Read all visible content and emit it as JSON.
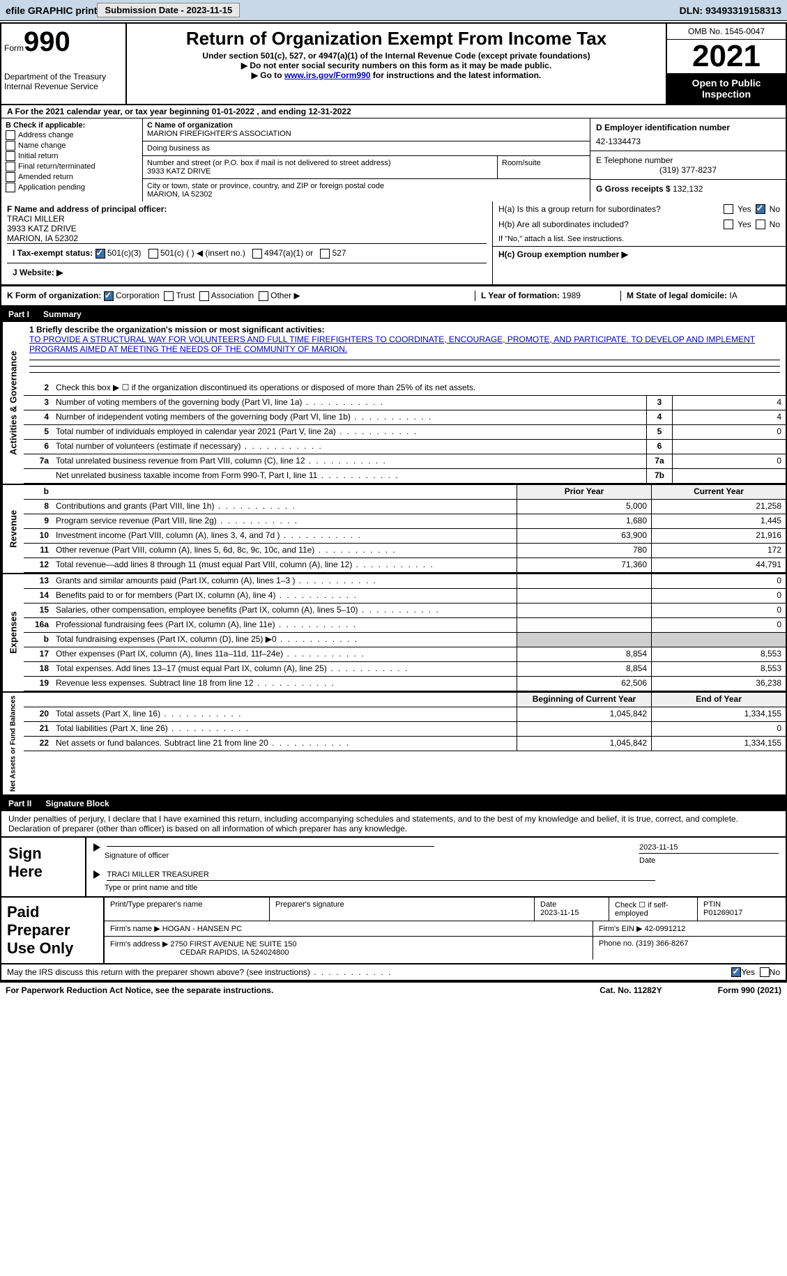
{
  "topbar": {
    "efile": "efile GRAPHIC print",
    "sub_date_label": "Submission Date - 2023-11-15",
    "dln_label": "DLN: 93493319158313"
  },
  "header": {
    "form_word": "Form",
    "form_num": "990",
    "dept": "Department of the Treasury",
    "irs": "Internal Revenue Service",
    "title": "Return of Organization Exempt From Income Tax",
    "sub1": "Under section 501(c), 527, or 4947(a)(1) of the Internal Revenue Code (except private foundations)",
    "sub2": "▶ Do not enter social security numbers on this form as it may be made public.",
    "sub3_pre": "▶ Go to ",
    "sub3_link": "www.irs.gov/Form990",
    "sub3_post": " for instructions and the latest information.",
    "omb": "OMB No. 1545-0047",
    "year": "2021",
    "open": "Open to Public Inspection"
  },
  "row_a": "A For the 2021 calendar year, or tax year beginning 01-01-2022    , and ending 12-31-2022",
  "col_b": {
    "label": "B Check if applicable:",
    "opts": [
      "Address change",
      "Name change",
      "Initial return",
      "Final return/terminated",
      "Amended return",
      "Application pending"
    ]
  },
  "col_c": {
    "name_label": "C Name of organization",
    "name": "MARION FIREFIGHTER'S ASSOCIATION",
    "dba_label": "Doing business as",
    "dba": "",
    "addr_label": "Number and street (or P.O. box if mail is not delivered to street address)",
    "addr": "3933 KATZ DRIVE",
    "room_label": "Room/suite",
    "city_label": "City or town, state or province, country, and ZIP or foreign postal code",
    "city": "MARION, IA   52302"
  },
  "col_d": {
    "ein_label": "D Employer identification number",
    "ein": "42-1334473",
    "tel_label": "E Telephone number",
    "tel": "(319) 377-8237",
    "gross_label": "G Gross receipts $",
    "gross": "132,132"
  },
  "section_f": {
    "label": "F Name and address of principal officer:",
    "name": "TRACI MILLER",
    "addr": "3933 KATZ DRIVE",
    "city": "MARION, IA   52302"
  },
  "section_h": {
    "ha": "H(a)  Is this a group return for subordinates?",
    "hb": "H(b)  Are all subordinates included?",
    "hb_note": "If \"No,\" attach a list. See instructions.",
    "hc": "H(c)  Group exemption number ▶",
    "yes": "Yes",
    "no": "No"
  },
  "tax_status": {
    "label": "I   Tax-exempt status:",
    "o1": "501(c)(3)",
    "o2": "501(c) (   ) ◀ (insert no.)",
    "o3": "4947(a)(1) or",
    "o4": "527"
  },
  "website": {
    "label": "J   Website: ▶"
  },
  "row_k": {
    "label": "K Form of organization:",
    "corp": "Corporation",
    "trust": "Trust",
    "assoc": "Association",
    "other": "Other ▶",
    "l_label": "L Year of formation: ",
    "l_val": "1989",
    "m_label": "M State of legal domicile: ",
    "m_val": "IA"
  },
  "part1": {
    "num": "Part I",
    "title": "Summary"
  },
  "summary": {
    "q1_label": "1  Briefly describe the organization's mission or most significant activities:",
    "q1_text": "TO PROVIDE A STRUCTURAL WAY FOR VOLUNTEERS AND FULL TIME FIREFIGHTERS TO COORDINATE, ENCOURAGE, PROMOTE, AND PARTICIPATE. TO DEVELOP AND IMPLEMENT PROGRAMS AIMED AT MEETING THE NEEDS OF THE COMMUNITY OF MARION.",
    "q2": "Check this box ▶ ☐  if the organization discontinued its operations or disposed of more than 25% of its net assets.",
    "lines_single": [
      {
        "n": "3",
        "d": "Number of voting members of the governing body (Part VI, line 1a)",
        "box": "3",
        "v": "4"
      },
      {
        "n": "4",
        "d": "Number of independent voting members of the governing body (Part VI, line 1b)",
        "box": "4",
        "v": "4"
      },
      {
        "n": "5",
        "d": "Total number of individuals employed in calendar year 2021 (Part V, line 2a)",
        "box": "5",
        "v": "0"
      },
      {
        "n": "6",
        "d": "Total number of volunteers (estimate if necessary)",
        "box": "6",
        "v": ""
      },
      {
        "n": "7a",
        "d": "Total unrelated business revenue from Part VIII, column (C), line 12",
        "box": "7a",
        "v": "0"
      },
      {
        "n": "",
        "d": "Net unrelated business taxable income from Form 990-T, Part I, line 11",
        "box": "7b",
        "v": ""
      }
    ],
    "col_head_prior": "Prior Year",
    "col_head_curr": "Current Year",
    "revenue": [
      {
        "n": "8",
        "d": "Contributions and grants (Part VIII, line 1h)",
        "p": "5,000",
        "c": "21,258"
      },
      {
        "n": "9",
        "d": "Program service revenue (Part VIII, line 2g)",
        "p": "1,680",
        "c": "1,445"
      },
      {
        "n": "10",
        "d": "Investment income (Part VIII, column (A), lines 3, 4, and 7d )",
        "p": "63,900",
        "c": "21,916"
      },
      {
        "n": "11",
        "d": "Other revenue (Part VIII, column (A), lines 5, 6d, 8c, 9c, 10c, and 11e)",
        "p": "780",
        "c": "172"
      },
      {
        "n": "12",
        "d": "Total revenue—add lines 8 through 11 (must equal Part VIII, column (A), line 12)",
        "p": "71,360",
        "c": "44,791"
      }
    ],
    "expenses": [
      {
        "n": "13",
        "d": "Grants and similar amounts paid (Part IX, column (A), lines 1–3 )",
        "p": "",
        "c": "0"
      },
      {
        "n": "14",
        "d": "Benefits paid to or for members (Part IX, column (A), line 4)",
        "p": "",
        "c": "0"
      },
      {
        "n": "15",
        "d": "Salaries, other compensation, employee benefits (Part IX, column (A), lines 5–10)",
        "p": "",
        "c": "0"
      },
      {
        "n": "16a",
        "d": "Professional fundraising fees (Part IX, column (A), line 11e)",
        "p": "",
        "c": "0"
      },
      {
        "n": "b",
        "d": "Total fundraising expenses (Part IX, column (D), line 25) ▶0",
        "p": "GREY",
        "c": "GREY"
      },
      {
        "n": "17",
        "d": "Other expenses (Part IX, column (A), lines 11a–11d, 11f–24e)",
        "p": "8,854",
        "c": "8,553"
      },
      {
        "n": "18",
        "d": "Total expenses. Add lines 13–17 (must equal Part IX, column (A), line 25)",
        "p": "8,854",
        "c": "8,553"
      },
      {
        "n": "19",
        "d": "Revenue less expenses. Subtract line 18 from line 12",
        "p": "62,506",
        "c": "36,238"
      }
    ],
    "net_head_begin": "Beginning of Current Year",
    "net_head_end": "End of Year",
    "net": [
      {
        "n": "20",
        "d": "Total assets (Part X, line 16)",
        "p": "1,045,842",
        "c": "1,334,155"
      },
      {
        "n": "21",
        "d": "Total liabilities (Part X, line 26)",
        "p": "",
        "c": "0"
      },
      {
        "n": "22",
        "d": "Net assets or fund balances. Subtract line 21 from line 20",
        "p": "1,045,842",
        "c": "1,334,155"
      }
    ],
    "vtab_activities": "Activities & Governance",
    "vtab_revenue": "Revenue",
    "vtab_expenses": "Expenses",
    "vtab_net": "Net Assets or Fund Balances"
  },
  "part2": {
    "num": "Part II",
    "title": "Signature Block"
  },
  "sig": {
    "declare": "Under penalties of perjury, I declare that I have examined this return, including accompanying schedules and statements, and to the best of my knowledge and belief, it is true, correct, and complete. Declaration of preparer (other than officer) is based on all information of which preparer has any knowledge.",
    "sign_here": "Sign Here",
    "sig_officer": "Signature of officer",
    "date": "Date",
    "date_val": "2023-11-15",
    "name_title": "TRACI MILLER  TREASURER",
    "type_name": "Type or print name and title"
  },
  "paid": {
    "label": "Paid Preparer Use Only",
    "print_name": "Print/Type preparer's name",
    "sig": "Preparer's signature",
    "date_l": "Date",
    "date_v": "2023-11-15",
    "check_l": "Check ☐ if self-employed",
    "ptin_l": "PTIN",
    "ptin_v": "P01269017",
    "firm_name_l": "Firm's name     ▶",
    "firm_name": "HOGAN - HANSEN PC",
    "firm_ein_l": "Firm's EIN ▶",
    "firm_ein": "42-0991212",
    "firm_addr_l": "Firm's address ▶",
    "firm_addr1": "2750 FIRST AVENUE NE SUITE 150",
    "firm_addr2": "CEDAR RAPIDS, IA   524024800",
    "phone_l": "Phone no.",
    "phone": "(319) 366-8267"
  },
  "footer": {
    "discuss": "May the IRS discuss this return with the preparer shown above? (see instructions)",
    "yes": "Yes",
    "no": "No",
    "pra": "For Paperwork Reduction Act Notice, see the separate instructions.",
    "cat": "Cat. No. 11282Y",
    "form": "Form 990 (2021)"
  }
}
